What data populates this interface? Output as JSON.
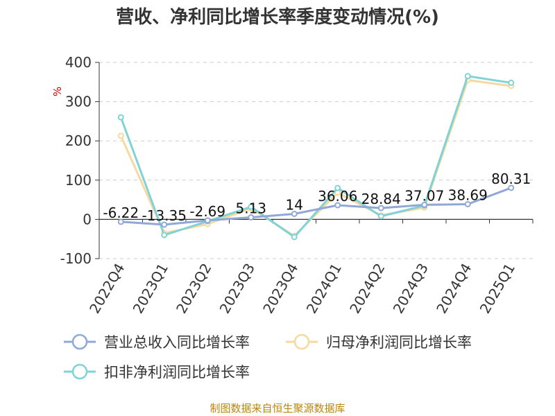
{
  "colors": {
    "revenue": "#8fa8d8",
    "net_profit": "#f7d9a0",
    "deducted_net_profit": "#7fd3d6",
    "source": "#b8860b",
    "unit": "#cc0000"
  },
  "chart_data": {
    "type": "line",
    "title": "营收、净利同比增长率季度变动情况(%)",
    "ylabel": "%",
    "xlabel": "",
    "categories": [
      "2022Q4",
      "2023Q1",
      "2023Q2",
      "2023Q3",
      "2023Q4",
      "2024Q1",
      "2024Q2",
      "2024Q3",
      "2024Q4",
      "2025Q1"
    ],
    "ylim": [
      -100,
      400
    ],
    "yticks": [
      -100,
      0,
      100,
      200,
      300,
      400
    ],
    "grid": true,
    "legend_position": "bottom",
    "series": [
      {
        "name": "营业总收入同比增长率",
        "color_key": "revenue",
        "values": [
          -6.22,
          -13.35,
          -2.69,
          5.13,
          14,
          36.06,
          28.84,
          37.07,
          38.69,
          80.31
        ],
        "labels": [
          "-6.22",
          "-13.35",
          "-2.69",
          "5.13",
          "14",
          "36.06",
          "28.84",
          "37.07",
          "38.69",
          "80.31"
        ]
      },
      {
        "name": "归母净利润同比增长率",
        "color_key": "net_profit",
        "values": [
          213,
          -35,
          -12,
          28,
          -42,
          68,
          10,
          30,
          355,
          340
        ]
      },
      {
        "name": "扣非净利润同比增长率",
        "color_key": "deducted_net_profit",
        "values": [
          260,
          -40,
          -5,
          32,
          -45,
          80,
          8,
          35,
          365,
          348
        ]
      }
    ]
  },
  "footer": {
    "source": "制图数据来自恒生聚源数据库"
  }
}
